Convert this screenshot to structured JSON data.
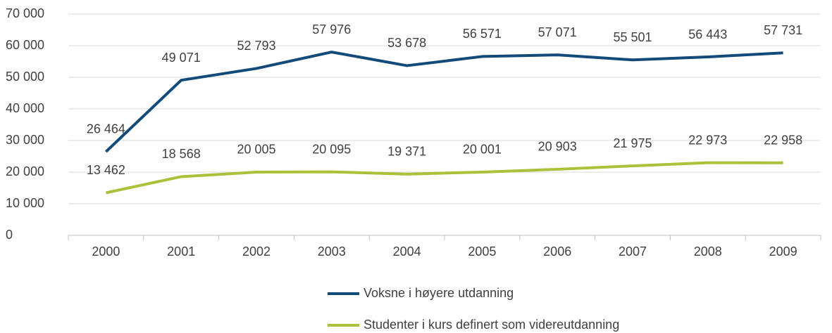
{
  "chart_data": {
    "type": "line",
    "categories": [
      "2000",
      "2001",
      "2002",
      "2003",
      "2004",
      "2005",
      "2006",
      "2007",
      "2008",
      "2009"
    ],
    "series": [
      {
        "name": "Voksne i høyere utdanning",
        "color": "#124a7a",
        "values": [
          26464,
          49071,
          52793,
          57976,
          53678,
          56571,
          57071,
          55501,
          56443,
          57731
        ],
        "value_labels": [
          "26 464",
          "49 071",
          "52 793",
          "57 976",
          "53 678",
          "56 571",
          "57 071",
          "55 501",
          "56 443",
          "57 731"
        ]
      },
      {
        "name": "Studenter i kurs definert som videreutdanning",
        "color": "#a9c23a",
        "values": [
          13462,
          18568,
          20005,
          20095,
          19371,
          20001,
          20903,
          21975,
          22973,
          22958
        ],
        "value_labels": [
          "13 462",
          "18 568",
          "20 005",
          "20 095",
          "19 371",
          "20 001",
          "20 903",
          "21 975",
          "22 973",
          "22 958"
        ]
      }
    ],
    "ylim": [
      0,
      70000
    ],
    "yticks": [
      0,
      {
        "value": 10000,
        "label": "10 000"
      },
      {
        "value": 20000,
        "label": "20 000"
      },
      {
        "value": 30000,
        "label": "30 000"
      },
      {
        "value": 40000,
        "label": "40 000"
      },
      {
        "value": 50000,
        "label": "50 000"
      },
      {
        "value": 60000,
        "label": "60 000"
      },
      {
        "value": 70000,
        "label": "70 000"
      }
    ],
    "grid": true,
    "legend": "bottom"
  }
}
